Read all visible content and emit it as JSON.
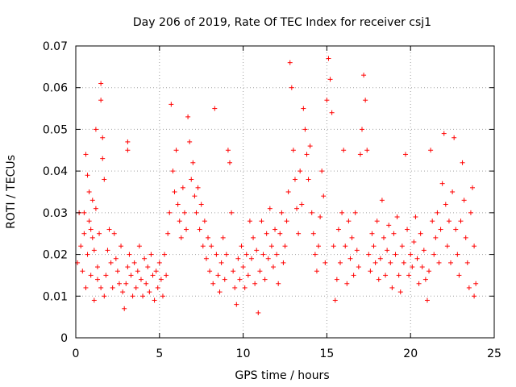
{
  "chart_data": {
    "type": "scatter",
    "title": "Day 206 of 2019, Rate Of TEC Index for receiver csj1",
    "xlabel": "GPS time / hours",
    "ylabel": "ROTI / TECUs",
    "xlim": [
      0,
      25
    ],
    "ylim": [
      0,
      0.07
    ],
    "xticks": [
      0,
      5,
      10,
      15,
      20,
      25
    ],
    "xtick_labels": [
      "0",
      "5",
      "10",
      "15",
      "20",
      "25"
    ],
    "yticks": [
      0,
      0.01,
      0.02,
      0.03,
      0.04,
      0.05,
      0.06,
      0.07
    ],
    "ytick_labels": [
      "0",
      "0.01",
      "0.02",
      "0.03",
      "0.04",
      "0.05",
      "0.06",
      "0.07"
    ],
    "grid": true,
    "marker": "plus",
    "color": "#ff0000",
    "series": [
      {
        "points": [
          [
            0.1,
            0.018
          ],
          [
            0.2,
            0.03
          ],
          [
            0.3,
            0.022
          ],
          [
            0.4,
            0.016
          ],
          [
            0.5,
            0.025
          ],
          [
            0.6,
            0.012
          ],
          [
            0.7,
            0.02
          ],
          [
            0.8,
            0.028
          ],
          [
            0.9,
            0.015
          ],
          [
            0.5,
            0.03
          ],
          [
            0.6,
            0.044
          ],
          [
            0.7,
            0.039
          ],
          [
            0.8,
            0.035
          ],
          [
            0.9,
            0.026
          ],
          [
            1.0,
            0.033
          ],
          [
            1.1,
            0.021
          ],
          [
            1.2,
            0.031
          ],
          [
            1.3,
            0.017
          ],
          [
            1.4,
            0.025
          ],
          [
            1.5,
            0.061
          ],
          [
            1.5,
            0.057
          ],
          [
            1.6,
            0.043
          ],
          [
            1.6,
            0.048
          ],
          [
            1.7,
            0.038
          ],
          [
            1.2,
            0.05
          ],
          [
            1.0,
            0.024
          ],
          [
            1.1,
            0.009
          ],
          [
            1.3,
            0.014
          ],
          [
            1.5,
            0.012
          ],
          [
            1.7,
            0.01
          ],
          [
            1.8,
            0.015
          ],
          [
            1.9,
            0.021
          ],
          [
            2.0,
            0.026
          ],
          [
            2.1,
            0.018
          ],
          [
            2.2,
            0.012
          ],
          [
            2.3,
            0.025
          ],
          [
            2.4,
            0.019
          ],
          [
            2.5,
            0.016
          ],
          [
            2.6,
            0.013
          ],
          [
            2.7,
            0.022
          ],
          [
            2.8,
            0.011
          ],
          [
            2.9,
            0.007
          ],
          [
            3.0,
            0.013
          ],
          [
            3.1,
            0.017
          ],
          [
            3.1,
            0.047
          ],
          [
            3.1,
            0.045
          ],
          [
            3.2,
            0.02
          ],
          [
            3.3,
            0.015
          ],
          [
            3.4,
            0.01
          ],
          [
            3.5,
            0.018
          ],
          [
            3.6,
            0.012
          ],
          [
            3.7,
            0.016
          ],
          [
            3.8,
            0.022
          ],
          [
            3.9,
            0.014
          ],
          [
            4.0,
            0.01
          ],
          [
            4.1,
            0.019
          ],
          [
            4.2,
            0.013
          ],
          [
            4.3,
            0.017
          ],
          [
            4.4,
            0.011
          ],
          [
            4.5,
            0.02
          ],
          [
            4.6,
            0.015
          ],
          [
            4.7,
            0.009
          ],
          [
            4.8,
            0.016
          ],
          [
            4.9,
            0.012
          ],
          [
            5.0,
            0.018
          ],
          [
            5.1,
            0.014
          ],
          [
            5.2,
            0.01
          ],
          [
            5.3,
            0.02
          ],
          [
            5.4,
            0.015
          ],
          [
            5.5,
            0.025
          ],
          [
            5.6,
            0.03
          ],
          [
            5.7,
            0.056
          ],
          [
            5.8,
            0.04
          ],
          [
            5.9,
            0.035
          ],
          [
            6.0,
            0.045
          ],
          [
            6.1,
            0.032
          ],
          [
            6.2,
            0.028
          ],
          [
            6.3,
            0.024
          ],
          [
            6.4,
            0.036
          ],
          [
            6.5,
            0.03
          ],
          [
            6.6,
            0.026
          ],
          [
            6.7,
            0.053
          ],
          [
            6.8,
            0.047
          ],
          [
            6.9,
            0.038
          ],
          [
            7.0,
            0.042
          ],
          [
            7.1,
            0.034
          ],
          [
            7.2,
            0.03
          ],
          [
            7.3,
            0.036
          ],
          [
            7.4,
            0.026
          ],
          [
            7.5,
            0.032
          ],
          [
            7.6,
            0.022
          ],
          [
            7.7,
            0.028
          ],
          [
            7.8,
            0.019
          ],
          [
            7.9,
            0.024
          ],
          [
            8.0,
            0.016
          ],
          [
            8.1,
            0.022
          ],
          [
            8.2,
            0.013
          ],
          [
            8.3,
            0.055
          ],
          [
            8.4,
            0.02
          ],
          [
            8.5,
            0.015
          ],
          [
            8.6,
            0.011
          ],
          [
            8.7,
            0.018
          ],
          [
            8.8,
            0.024
          ],
          [
            8.9,
            0.014
          ],
          [
            9.0,
            0.02
          ],
          [
            9.1,
            0.045
          ],
          [
            9.2,
            0.042
          ],
          [
            9.3,
            0.03
          ],
          [
            9.4,
            0.016
          ],
          [
            9.5,
            0.012
          ],
          [
            9.6,
            0.008
          ],
          [
            9.7,
            0.019
          ],
          [
            9.8,
            0.014
          ],
          [
            9.9,
            0.022
          ],
          [
            10.0,
            0.017
          ],
          [
            10.1,
            0.012
          ],
          [
            10.2,
            0.02
          ],
          [
            10.3,
            0.015
          ],
          [
            10.4,
            0.028
          ],
          [
            10.5,
            0.019
          ],
          [
            10.6,
            0.024
          ],
          [
            10.7,
            0.013
          ],
          [
            10.8,
            0.021
          ],
          [
            10.9,
            0.006
          ],
          [
            11.0,
            0.016
          ],
          [
            11.1,
            0.028
          ],
          [
            11.2,
            0.02
          ],
          [
            11.3,
            0.014
          ],
          [
            11.4,
            0.025
          ],
          [
            11.5,
            0.019
          ],
          [
            11.6,
            0.031
          ],
          [
            11.7,
            0.022
          ],
          [
            11.8,
            0.017
          ],
          [
            11.9,
            0.026
          ],
          [
            12.0,
            0.02
          ],
          [
            12.1,
            0.013
          ],
          [
            12.2,
            0.025
          ],
          [
            12.3,
            0.03
          ],
          [
            12.4,
            0.018
          ],
          [
            12.5,
            0.022
          ],
          [
            12.6,
            0.028
          ],
          [
            12.7,
            0.035
          ],
          [
            12.8,
            0.066
          ],
          [
            12.9,
            0.06
          ],
          [
            13.0,
            0.045
          ],
          [
            13.1,
            0.038
          ],
          [
            13.2,
            0.031
          ],
          [
            13.3,
            0.025
          ],
          [
            13.4,
            0.04
          ],
          [
            13.5,
            0.032
          ],
          [
            13.6,
            0.055
          ],
          [
            13.7,
            0.05
          ],
          [
            13.8,
            0.044
          ],
          [
            13.9,
            0.038
          ],
          [
            14.0,
            0.046
          ],
          [
            14.1,
            0.03
          ],
          [
            14.2,
            0.025
          ],
          [
            14.3,
            0.02
          ],
          [
            14.4,
            0.016
          ],
          [
            14.5,
            0.022
          ],
          [
            14.6,
            0.029
          ],
          [
            14.7,
            0.04
          ],
          [
            14.8,
            0.034
          ],
          [
            14.9,
            0.018
          ],
          [
            15.0,
            0.057
          ],
          [
            15.1,
            0.067
          ],
          [
            15.2,
            0.062
          ],
          [
            15.3,
            0.054
          ],
          [
            15.4,
            0.022
          ],
          [
            15.5,
            0.009
          ],
          [
            15.6,
            0.014
          ],
          [
            15.7,
            0.026
          ],
          [
            15.8,
            0.018
          ],
          [
            15.9,
            0.03
          ],
          [
            16.0,
            0.045
          ],
          [
            16.1,
            0.022
          ],
          [
            16.2,
            0.013
          ],
          [
            16.3,
            0.028
          ],
          [
            16.4,
            0.019
          ],
          [
            16.5,
            0.024
          ],
          [
            16.6,
            0.015
          ],
          [
            16.7,
            0.03
          ],
          [
            16.8,
            0.021
          ],
          [
            16.9,
            0.017
          ],
          [
            17.0,
            0.044
          ],
          [
            17.1,
            0.05
          ],
          [
            17.2,
            0.063
          ],
          [
            17.3,
            0.057
          ],
          [
            17.4,
            0.045
          ],
          [
            17.5,
            0.02
          ],
          [
            17.6,
            0.016
          ],
          [
            17.7,
            0.025
          ],
          [
            17.8,
            0.022
          ],
          [
            17.9,
            0.018
          ],
          [
            18.0,
            0.028
          ],
          [
            18.1,
            0.014
          ],
          [
            18.2,
            0.019
          ],
          [
            18.3,
            0.033
          ],
          [
            18.4,
            0.024
          ],
          [
            18.5,
            0.015
          ],
          [
            18.6,
            0.021
          ],
          [
            18.7,
            0.027
          ],
          [
            18.8,
            0.018
          ],
          [
            18.9,
            0.012
          ],
          [
            19.0,
            0.025
          ],
          [
            19.1,
            0.02
          ],
          [
            19.2,
            0.029
          ],
          [
            19.3,
            0.015
          ],
          [
            19.4,
            0.011
          ],
          [
            19.5,
            0.022
          ],
          [
            19.6,
            0.018
          ],
          [
            19.7,
            0.044
          ],
          [
            19.8,
            0.026
          ],
          [
            19.9,
            0.015
          ],
          [
            20.0,
            0.02
          ],
          [
            20.1,
            0.017
          ],
          [
            20.2,
            0.023
          ],
          [
            20.3,
            0.029
          ],
          [
            20.4,
            0.019
          ],
          [
            20.5,
            0.013
          ],
          [
            20.6,
            0.025
          ],
          [
            20.7,
            0.017
          ],
          [
            20.8,
            0.021
          ],
          [
            20.9,
            0.014
          ],
          [
            21.0,
            0.009
          ],
          [
            21.1,
            0.016
          ],
          [
            21.2,
            0.045
          ],
          [
            21.3,
            0.028
          ],
          [
            21.4,
            0.02
          ],
          [
            21.5,
            0.024
          ],
          [
            21.6,
            0.03
          ],
          [
            21.7,
            0.018
          ],
          [
            21.8,
            0.026
          ],
          [
            21.9,
            0.037
          ],
          [
            22.0,
            0.049
          ],
          [
            22.1,
            0.032
          ],
          [
            22.2,
            0.022
          ],
          [
            22.3,
            0.028
          ],
          [
            22.4,
            0.018
          ],
          [
            22.5,
            0.035
          ],
          [
            22.6,
            0.048
          ],
          [
            22.7,
            0.026
          ],
          [
            22.8,
            0.02
          ],
          [
            22.9,
            0.015
          ],
          [
            23.0,
            0.028
          ],
          [
            23.1,
            0.042
          ],
          [
            23.2,
            0.033
          ],
          [
            23.3,
            0.024
          ],
          [
            23.4,
            0.018
          ],
          [
            23.5,
            0.012
          ],
          [
            23.6,
            0.03
          ],
          [
            23.7,
            0.036
          ],
          [
            23.8,
            0.022
          ],
          [
            23.9,
            0.013
          ],
          [
            23.8,
            0.01
          ]
        ]
      }
    ]
  }
}
